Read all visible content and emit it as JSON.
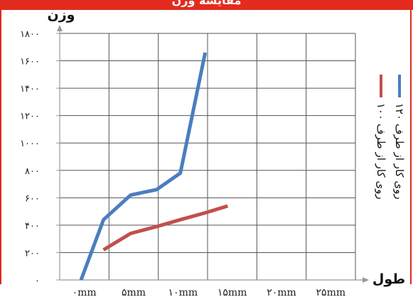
{
  "header": {
    "title": "مقایسه وزن"
  },
  "chart_data": {
    "type": "line",
    "title": "",
    "xlabel": "طول",
    "ylabel": "وزن",
    "categories": [
      "۰mm",
      "۵mm",
      "۱۰mm",
      "۱۵mm",
      "۲۰mm",
      "۲۵mm"
    ],
    "category_values": [
      0,
      5,
      10,
      15,
      20,
      25
    ],
    "yticks": [
      "۰",
      "۲۰۰",
      "۴۰۰",
      "۶۰۰",
      "۸۰۰",
      "۱۰۰۰",
      "۱۲۰۰",
      "۱۴۰۰",
      "۱۶۰۰",
      "۱۸۰۰"
    ],
    "ylim": [
      0,
      1800
    ],
    "xlim": [
      0,
      25
    ],
    "grid": true,
    "legend_position": "right",
    "series": [
      {
        "name": "روی کار از طرف ۱۲۰",
        "color": "#4a7ebf",
        "points": [
          [
            1.8,
            0
          ],
          [
            3.7,
            440
          ],
          [
            6.0,
            620
          ],
          [
            8.2,
            660
          ],
          [
            10.2,
            780
          ],
          [
            12.3,
            1660
          ]
        ]
      },
      {
        "name": "روی کار از طرف ۱۰۰",
        "color": "#c0504d",
        "points": [
          [
            3.7,
            220
          ],
          [
            6.0,
            340
          ],
          [
            8.2,
            390
          ],
          [
            10.2,
            440
          ],
          [
            12.3,
            490
          ],
          [
            14.2,
            540
          ]
        ]
      }
    ]
  }
}
